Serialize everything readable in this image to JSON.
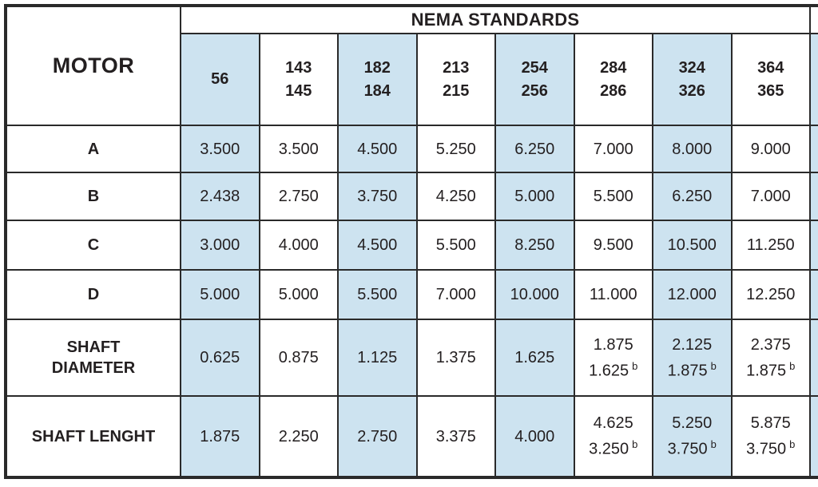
{
  "table": {
    "corner_label": "MOTOR",
    "group_header": "NEMA STANDARDS",
    "column_headers": [
      "56",
      "143\n145",
      "182\n184",
      "213\n215",
      "254\n256",
      "284\n286",
      "324\n326",
      "364\n365"
    ],
    "rows": [
      {
        "label": "A",
        "cells": [
          {
            "v": "3.500"
          },
          {
            "v": "3.500"
          },
          {
            "v": "4.500"
          },
          {
            "v": "5.250"
          },
          {
            "v": "6.250"
          },
          {
            "v": "7.000"
          },
          {
            "v": "8.000"
          },
          {
            "v": "9.000"
          }
        ]
      },
      {
        "label": "B",
        "cells": [
          {
            "v": "2.438"
          },
          {
            "v": "2.750"
          },
          {
            "v": "3.750"
          },
          {
            "v": "4.250"
          },
          {
            "v": "5.000"
          },
          {
            "v": "5.500"
          },
          {
            "v": "6.250"
          },
          {
            "v": "7.000"
          }
        ]
      },
      {
        "label": "C",
        "cells": [
          {
            "v": "3.000"
          },
          {
            "v": "4.000"
          },
          {
            "v": "4.500"
          },
          {
            "v": "5.500"
          },
          {
            "v": "8.250"
          },
          {
            "v": "9.500"
          },
          {
            "v": "10.500"
          },
          {
            "v": "11.250"
          }
        ]
      },
      {
        "label": "D",
        "cells": [
          {
            "v": "5.000"
          },
          {
            "v": "5.000"
          },
          {
            "v": "5.500"
          },
          {
            "v": "7.000"
          },
          {
            "v": "10.000"
          },
          {
            "v": "11.000"
          },
          {
            "v": "12.000"
          },
          {
            "v": "12.250"
          }
        ]
      },
      {
        "label": "SHAFT\nDIAMETER",
        "cells": [
          {
            "v": "0.625"
          },
          {
            "v": "0.875"
          },
          {
            "v": "1.125"
          },
          {
            "v": "1.375"
          },
          {
            "v": "1.625"
          },
          {
            "v": "1.875",
            "v2": "1.625",
            "note": "b"
          },
          {
            "v": "2.125",
            "v2": "1.875",
            "note": "b"
          },
          {
            "v": "2.375",
            "v2": "1.875",
            "note": "b"
          }
        ]
      },
      {
        "label": "SHAFT LENGHT",
        "cells": [
          {
            "v": "1.875"
          },
          {
            "v": "2.250"
          },
          {
            "v": "2.750"
          },
          {
            "v": "3.375"
          },
          {
            "v": "4.000"
          },
          {
            "v": "4.625",
            "v2": "3.250",
            "note": "b"
          },
          {
            "v": "5.250",
            "v2": "3.750",
            "note": "b"
          },
          {
            "v": "5.875",
            "v2": "3.750",
            "note": "b"
          }
        ]
      }
    ],
    "shaded_column_headers": [
      "56",
      "182\n184",
      "254\n256",
      "324\n326"
    ]
  },
  "colors": {
    "shaded": "#cde3f0",
    "border": "#2a2a2a",
    "text": "#231f20",
    "background": "#ffffff"
  }
}
